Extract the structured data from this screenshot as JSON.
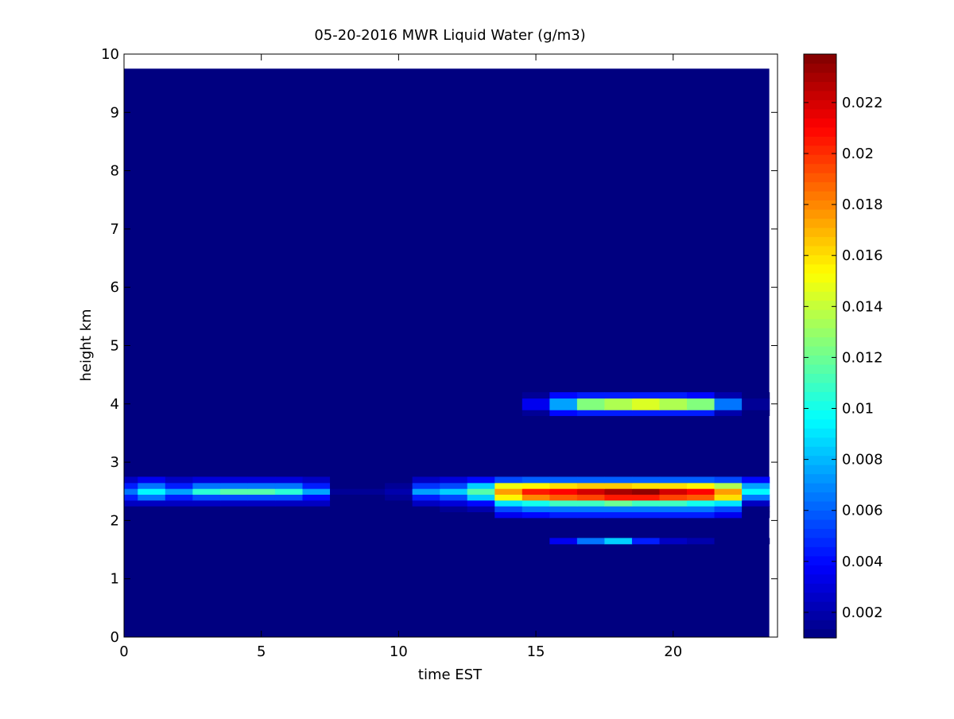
{
  "chart_data": {
    "type": "heatmap",
    "title": "05-20-2016 MWR Liquid Water (g/m3)",
    "xlabel": "time EST",
    "ylabel": "height km",
    "xlim": [
      0,
      23.8
    ],
    "ylim": [
      0,
      10
    ],
    "x_ticks": [
      0,
      5,
      10,
      15,
      20
    ],
    "y_ticks": [
      0,
      1,
      2,
      3,
      4,
      5,
      6,
      7,
      8,
      9,
      10
    ],
    "colormap": "jet",
    "clim": [
      0.001,
      0.0239
    ],
    "colorbar_ticks": [
      0.002,
      0.004,
      0.006,
      0.008,
      0.01,
      0.012,
      0.014,
      0.016,
      0.018,
      0.02,
      0.022
    ],
    "colorbar_tick_labels": [
      "0.002",
      "0.004",
      "0.006",
      "0.008",
      "0.01",
      "0.012",
      "0.014",
      "0.016",
      "0.018",
      "0.02",
      "0.022"
    ],
    "data_extent": {
      "x_range": [
        0,
        23.5
      ],
      "y_max": 9.75
    },
    "background_value": 0.001,
    "x_centers": [
      0,
      1,
      2,
      3,
      4,
      5,
      6,
      7,
      8,
      9,
      10,
      11,
      12,
      13,
      14,
      15,
      16,
      17,
      18,
      19,
      20,
      21,
      22,
      23
    ],
    "rows": [
      {
        "y": [
          1.6,
          1.7
        ],
        "values": [
          0.001,
          0.001,
          0.001,
          0.001,
          0.001,
          0.001,
          0.001,
          0.001,
          0.001,
          0.001,
          0.001,
          0.001,
          0.001,
          0.001,
          0.001,
          0.001,
          0.0035,
          0.0065,
          0.0085,
          0.0045,
          0.0025,
          0.002,
          0.001,
          0.001
        ]
      },
      {
        "y": [
          2.05,
          2.15
        ],
        "values": [
          0.001,
          0.001,
          0.001,
          0.001,
          0.001,
          0.001,
          0.001,
          0.001,
          0.001,
          0.001,
          0.001,
          0.001,
          0.001,
          0.001,
          0.0035,
          0.004,
          0.0045,
          0.0045,
          0.0045,
          0.0045,
          0.0045,
          0.0045,
          0.0035,
          0.001
        ]
      },
      {
        "y": [
          2.15,
          2.25
        ],
        "values": [
          0.001,
          0.001,
          0.001,
          0.001,
          0.001,
          0.001,
          0.001,
          0.001,
          0.001,
          0.001,
          0.001,
          0.001,
          0.0015,
          0.002,
          0.0055,
          0.0065,
          0.0065,
          0.0065,
          0.0065,
          0.0065,
          0.0065,
          0.0065,
          0.0055,
          0.001
        ]
      },
      {
        "y": [
          2.25,
          2.35
        ],
        "values": [
          0.0025,
          0.0025,
          0.0025,
          0.0025,
          0.0025,
          0.0025,
          0.0025,
          0.0025,
          0.001,
          0.001,
          0.001,
          0.0025,
          0.003,
          0.004,
          0.009,
          0.01,
          0.011,
          0.011,
          0.012,
          0.011,
          0.011,
          0.01,
          0.009,
          0.0025
        ]
      },
      {
        "y": [
          2.35,
          2.45
        ],
        "values": [
          0.0045,
          0.0065,
          0.0045,
          0.0055,
          0.0055,
          0.0055,
          0.0055,
          0.004,
          0.001,
          0.001,
          0.0015,
          0.0045,
          0.0055,
          0.0085,
          0.0155,
          0.018,
          0.019,
          0.0195,
          0.0205,
          0.0205,
          0.0195,
          0.019,
          0.016,
          0.0065
        ]
      },
      {
        "y": [
          2.45,
          2.55
        ],
        "values": [
          0.0065,
          0.0095,
          0.0075,
          0.0105,
          0.0115,
          0.0115,
          0.0105,
          0.0075,
          0.0015,
          0.0015,
          0.002,
          0.0075,
          0.0085,
          0.0115,
          0.0175,
          0.0205,
          0.021,
          0.022,
          0.023,
          0.0235,
          0.022,
          0.021,
          0.0175,
          0.0095
        ]
      },
      {
        "y": [
          2.55,
          2.65
        ],
        "values": [
          0.0045,
          0.0065,
          0.0045,
          0.0065,
          0.0065,
          0.0065,
          0.0065,
          0.0045,
          0.001,
          0.001,
          0.0015,
          0.005,
          0.0055,
          0.0085,
          0.015,
          0.0155,
          0.016,
          0.0165,
          0.0165,
          0.016,
          0.016,
          0.0155,
          0.0135,
          0.0075
        ]
      },
      {
        "y": [
          2.65,
          2.75
        ],
        "values": [
          0.0025,
          0.0035,
          0.0025,
          0.003,
          0.003,
          0.003,
          0.003,
          0.0025,
          0.001,
          0.001,
          0.001,
          0.0025,
          0.003,
          0.004,
          0.0055,
          0.006,
          0.006,
          0.006,
          0.006,
          0.006,
          0.006,
          0.006,
          0.0055,
          0.004
        ]
      },
      {
        "y": [
          3.8,
          3.9
        ],
        "values": [
          0.001,
          0.001,
          0.001,
          0.001,
          0.001,
          0.001,
          0.001,
          0.001,
          0.001,
          0.001,
          0.001,
          0.001,
          0.001,
          0.001,
          0.001,
          0.0015,
          0.004,
          0.0045,
          0.0045,
          0.0045,
          0.0045,
          0.0045,
          0.002,
          0.001
        ]
      },
      {
        "y": [
          3.9,
          4.1
        ],
        "values": [
          0.001,
          0.001,
          0.001,
          0.001,
          0.001,
          0.001,
          0.001,
          0.001,
          0.001,
          0.001,
          0.001,
          0.001,
          0.001,
          0.001,
          0.001,
          0.0035,
          0.0075,
          0.0125,
          0.0135,
          0.0145,
          0.0135,
          0.0125,
          0.0065,
          0.0015
        ]
      },
      {
        "y": [
          4.1,
          4.2
        ],
        "values": [
          0.001,
          0.001,
          0.001,
          0.001,
          0.001,
          0.001,
          0.001,
          0.001,
          0.001,
          0.001,
          0.001,
          0.001,
          0.001,
          0.001,
          0.001,
          0.0015,
          0.004,
          0.0045,
          0.0045,
          0.0045,
          0.0045,
          0.004,
          0.002,
          0.001
        ]
      }
    ]
  }
}
